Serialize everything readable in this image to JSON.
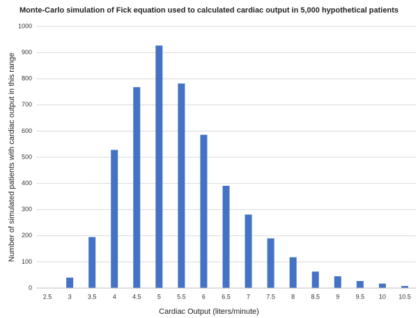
{
  "chart_data": {
    "type": "bar",
    "title": "Monte-Carlo simulation of Fick equation used to calculated cardiac output in 5,000 hypothetical patients",
    "x_label": "Cardiac Output (liters/minute)",
    "y_label": "Number of simulated patients with cardiac output in this range",
    "categories": [
      "2.5",
      "3",
      "3.5",
      "4",
      "4.5",
      "5",
      "5.5",
      "6",
      "6.5",
      "7",
      "7.5",
      "8",
      "8.5",
      "9",
      "9.5",
      "10",
      "10.5"
    ],
    "values": [
      0,
      40,
      195,
      528,
      768,
      927,
      782,
      586,
      391,
      281,
      190,
      118,
      63,
      45,
      27,
      17,
      8
    ],
    "color": "#4472c4",
    "ylim": [
      0,
      1000
    ],
    "yticks": [
      0,
      100,
      200,
      300,
      400,
      500,
      600,
      700,
      800,
      900,
      1000
    ],
    "grid": true
  }
}
